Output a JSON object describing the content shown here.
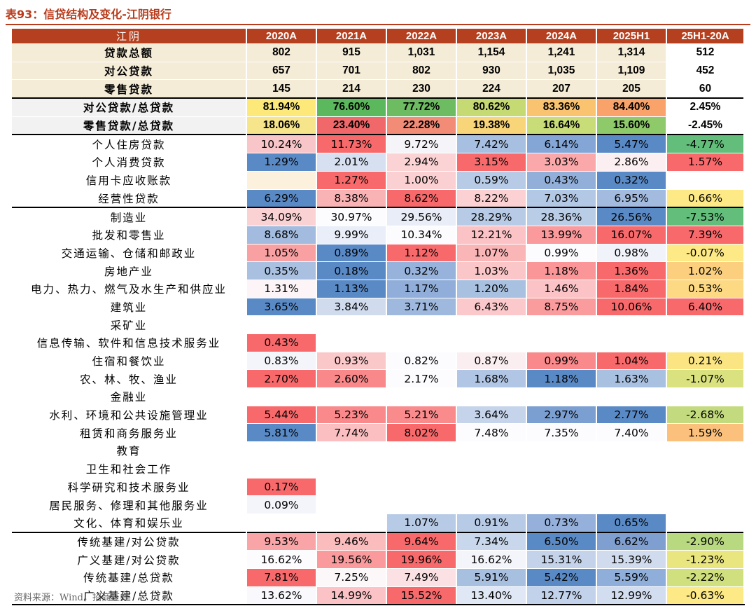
{
  "title": "表93：信贷结构及变化-江阴银行",
  "source": "资料来源：Wind，招商证券",
  "header": [
    "江阴",
    "2020A",
    "2021A",
    "2022A",
    "2023A",
    "2024A",
    "2025H1",
    "25H1-20A"
  ],
  "rows": [
    {
      "label": "贷款总额",
      "kind": "tot",
      "values": [
        "802",
        "915",
        "1,031",
        "1,154",
        "1,241",
        "1,314",
        "512"
      ]
    },
    {
      "label": "对公贷款",
      "kind": "tot",
      "values": [
        "657",
        "701",
        "802",
        "930",
        "1,035",
        "1,109",
        "452"
      ]
    },
    {
      "label": "零售贷款",
      "kind": "tot",
      "values": [
        "145",
        "214",
        "230",
        "224",
        "207",
        "205",
        "60"
      ]
    },
    {
      "label": "对公贷款/总贷款",
      "kind": "shr",
      "sep": true,
      "values": [
        "81.94%",
        "76.60%",
        "77.72%",
        "80.62%",
        "83.36%",
        "84.40%",
        "2.45%"
      ],
      "colors": [
        "#fce97a",
        "#5cb85c",
        "#6ebc62",
        "#c6da74",
        "#f9c36f",
        "#f9a36a",
        "#ffffff"
      ]
    },
    {
      "label": "零售贷款/总贷款",
      "kind": "shr",
      "values": [
        "18.06%",
        "23.40%",
        "22.28%",
        "19.38%",
        "16.64%",
        "15.60%",
        "-2.45%"
      ],
      "colors": [
        "#f6e58a",
        "#f0686a",
        "#f38c77",
        "#f9d57a",
        "#c8dc78",
        "#8ec96a",
        "#ffffff"
      ]
    },
    {
      "label": "个人住房贷款",
      "sep": true,
      "values": [
        "10.24%",
        "11.73%",
        "9.72%",
        "7.42%",
        "6.14%",
        "5.47%",
        "-4.77%"
      ],
      "colors": [
        "#f8c6c9",
        "#f8696b",
        "#f5f5f9",
        "#a7bfe0",
        "#84a6d7",
        "#5a8ac6",
        "#63be7b"
      ]
    },
    {
      "label": "个人消费贷款",
      "values": [
        "1.29%",
        "2.01%",
        "2.94%",
        "3.15%",
        "3.03%",
        "2.86%",
        "1.57%"
      ],
      "colors": [
        "#5a8ac6",
        "#d6e0f0",
        "#fbd3d5",
        "#f8696b",
        "#fba8aa",
        "#fceff1",
        "#f8696b"
      ]
    },
    {
      "label": "信用卡应收账款",
      "values": [
        "",
        "1.27%",
        "1.00%",
        "0.59%",
        "0.43%",
        "0.32%",
        ""
      ],
      "colors": [
        "#fbf1dc",
        "#f8696b",
        "#fbd0d2",
        "#b7cbe7",
        "#91afd9",
        "#5a8ac6",
        "#ffffff"
      ]
    },
    {
      "label": "经营性贷款",
      "values": [
        "6.29%",
        "8.38%",
        "8.62%",
        "8.22%",
        "7.03%",
        "6.95%",
        "0.66%"
      ],
      "colors": [
        "#5a8ac6",
        "#fab3b5",
        "#f8696b",
        "#fbd1d3",
        "#b3c8e5",
        "#a2bbde",
        "#fde986"
      ]
    },
    {
      "label": "制造业",
      "sep": true,
      "values": [
        "34.09%",
        "30.97%",
        "29.56%",
        "28.29%",
        "28.36%",
        "26.56%",
        "-7.53%"
      ],
      "colors": [
        "#fbd2d4",
        "#fcfcff",
        "#e8edf7",
        "#b8cbe6",
        "#bacde7",
        "#5a8ac6",
        "#63be7b"
      ]
    },
    {
      "label": "批发和零售业",
      "values": [
        "8.68%",
        "9.99%",
        "10.34%",
        "12.21%",
        "13.99%",
        "16.07%",
        "7.39%"
      ],
      "colors": [
        "#a2bbde",
        "#e9eef8",
        "#fcfcff",
        "#fbc3c5",
        "#fa9a9c",
        "#f8696b",
        "#f8696b"
      ]
    },
    {
      "label": "交通运输、仓储和邮政业",
      "values": [
        "1.05%",
        "0.89%",
        "1.12%",
        "1.07%",
        "0.99%",
        "0.98%",
        "-0.07%"
      ],
      "colors": [
        "#f9a0a2",
        "#5a8ac6",
        "#f8696b",
        "#fab5b7",
        "#fcfcff",
        "#f0f3fa",
        "#fde986"
      ]
    },
    {
      "label": "房地产业",
      "values": [
        "0.35%",
        "0.18%",
        "0.32%",
        "1.03%",
        "1.18%",
        "1.36%",
        "1.02%"
      ],
      "colors": [
        "#a9c0e0",
        "#5a8ac6",
        "#97b2db",
        "#fbc6c8",
        "#fa9698",
        "#f8696b",
        "#fbcf7e"
      ]
    },
    {
      "label": "电力、热力、燃气及水生产和供应业",
      "values": [
        "1.31%",
        "1.13%",
        "1.17%",
        "1.20%",
        "1.46%",
        "1.84%",
        "0.53%"
      ],
      "colors": [
        "#fcf4f6",
        "#5a8ac6",
        "#90aed9",
        "#a9c1e1",
        "#fbc3c5",
        "#f8696b",
        "#fcd982"
      ]
    },
    {
      "label": "建筑业",
      "values": [
        "3.65%",
        "3.84%",
        "3.71%",
        "6.43%",
        "8.75%",
        "10.06%",
        "6.40%"
      ],
      "colors": [
        "#5a8ac6",
        "#d0dcee",
        "#9fb9de",
        "#fbc9cb",
        "#fa9c9e",
        "#f8696b",
        "#f8696b"
      ]
    },
    {
      "label": "采矿业",
      "values": [
        "",
        "",
        "",
        "",
        "",
        "",
        ""
      ],
      "colors": [
        "#ffffff",
        "#ffffff",
        "#ffffff",
        "#ffffff",
        "#ffffff",
        "#ffffff",
        "#ffffff"
      ]
    },
    {
      "label": "信息传输、软件和信息技术服务业",
      "values": [
        "0.43%",
        "",
        "",
        "",
        "",
        "",
        ""
      ],
      "colors": [
        "#f8696b",
        "#ffffff",
        "#ffffff",
        "#ffffff",
        "#ffffff",
        "#ffffff",
        "#ffffff"
      ]
    },
    {
      "label": "住宿和餐饮业",
      "values": [
        "0.83%",
        "0.93%",
        "0.82%",
        "0.87%",
        "0.99%",
        "1.04%",
        "0.21%"
      ],
      "colors": [
        "#f3f5fb",
        "#fbc8ca",
        "#fcfcff",
        "#fbeef0",
        "#f9898b",
        "#f8696b",
        "#fbe583"
      ]
    },
    {
      "label": "农、林、牧、渔业",
      "values": [
        "2.70%",
        "2.60%",
        "2.17%",
        "1.68%",
        "1.18%",
        "1.63%",
        "-1.07%"
      ],
      "colors": [
        "#f8696b",
        "#f9888a",
        "#fcfcff",
        "#b0c6e4",
        "#5a8ac6",
        "#a9c1e1",
        "#d9e27f"
      ]
    },
    {
      "label": "金融业",
      "values": [
        "",
        "",
        "",
        "",
        "",
        "",
        ""
      ],
      "colors": [
        "#ffffff",
        "#ffffff",
        "#ffffff",
        "#ffffff",
        "#ffffff",
        "#ffffff",
        "#ffffff"
      ]
    },
    {
      "label": "水利、环境和公共设施管理业",
      "values": [
        "5.44%",
        "5.23%",
        "5.21%",
        "3.64%",
        "2.97%",
        "2.77%",
        "-2.68%"
      ],
      "colors": [
        "#f8696b",
        "#f9898b",
        "#f98b8d",
        "#c5d4eb",
        "#7b9fd1",
        "#5a8ac6",
        "#c3db7e"
      ]
    },
    {
      "label": "租赁和商务服务业",
      "values": [
        "5.81%",
        "7.74%",
        "8.02%",
        "7.48%",
        "7.35%",
        "7.40%",
        "1.59%"
      ],
      "colors": [
        "#5a8ac6",
        "#fbbfc1",
        "#f8696b",
        "#fcfcff",
        "#fcfcff",
        "#fcfcff",
        "#fbc17c"
      ]
    },
    {
      "label": "教育",
      "values": [
        "",
        "",
        "",
        "",
        "",
        "",
        ""
      ],
      "colors": [
        "#ffffff",
        "#ffffff",
        "#ffffff",
        "#ffffff",
        "#ffffff",
        "#ffffff",
        "#ffffff"
      ]
    },
    {
      "label": "卫生和社会工作",
      "values": [
        "",
        "",
        "",
        "",
        "",
        "",
        ""
      ],
      "colors": [
        "#ffffff",
        "#ffffff",
        "#ffffff",
        "#ffffff",
        "#ffffff",
        "#ffffff",
        "#ffffff"
      ]
    },
    {
      "label": "科学研究和技术服务业",
      "values": [
        "0.17%",
        "",
        "",
        "",
        "",
        "",
        ""
      ],
      "colors": [
        "#f8696b",
        "#ffffff",
        "#ffffff",
        "#ffffff",
        "#ffffff",
        "#ffffff",
        "#ffffff"
      ]
    },
    {
      "label": "居民服务、修理和其他服务业",
      "values": [
        "0.09%",
        "",
        "",
        "",
        "",
        "",
        ""
      ],
      "colors": [
        "#f3f5fb",
        "#ffffff",
        "#ffffff",
        "#ffffff",
        "#ffffff",
        "#ffffff",
        "#ffffff"
      ]
    },
    {
      "label": "文化、体育和娱乐业",
      "values": [
        "",
        "",
        "1.07%",
        "0.91%",
        "0.73%",
        "0.65%",
        ""
      ],
      "colors": [
        "#ffffff",
        "#ffffff",
        "#b8cbe6",
        "#b8cbe6",
        "#95b0da",
        "#5a8ac6",
        "#ffffff"
      ]
    },
    {
      "label": "传统基建/对公贷款",
      "sep": true,
      "values": [
        "9.53%",
        "9.46%",
        "9.64%",
        "7.34%",
        "6.50%",
        "6.62%",
        "-2.90%"
      ],
      "colors": [
        "#f9a5a7",
        "#fbbcbe",
        "#f8696b",
        "#c9d7ec",
        "#5a8ac6",
        "#7f9fd1",
        "#b9d980"
      ]
    },
    {
      "label": "广义基建/对公贷款",
      "values": [
        "16.62%",
        "19.56%",
        "19.96%",
        "16.62%",
        "15.31%",
        "15.39%",
        "-1.23%"
      ],
      "colors": [
        "#fcfcff",
        "#fa9a9c",
        "#f8696b",
        "#f3f5fb",
        "#c4d3ea",
        "#d0dcee",
        "#eae67f"
      ]
    },
    {
      "label": "传统基建/总贷款",
      "values": [
        "7.81%",
        "7.25%",
        "7.49%",
        "5.91%",
        "5.42%",
        "5.59%",
        "-2.22%"
      ],
      "colors": [
        "#f8696b",
        "#fcf7f9",
        "#fbe1e3",
        "#a8c0e0",
        "#5a8ac6",
        "#8faed9",
        "#d1e07e"
      ]
    },
    {
      "label": "广义基建/总贷款",
      "end": true,
      "values": [
        "13.62%",
        "14.99%",
        "15.52%",
        "13.40%",
        "12.77%",
        "12.99%",
        "-0.63%"
      ],
      "colors": [
        "#f8f8fd",
        "#fbc3c5",
        "#f8696b",
        "#e1e8f5",
        "#c2d2ea",
        "#d2ddef",
        "#fde986"
      ]
    }
  ]
}
